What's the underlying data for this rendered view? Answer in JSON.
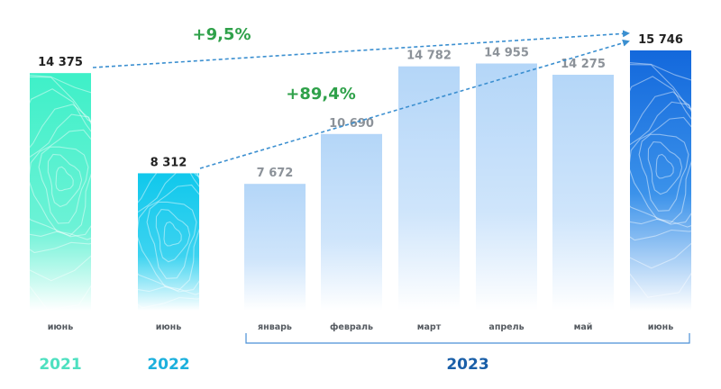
{
  "chart_data": {
    "type": "bar",
    "categories": [
      "июнь",
      "июнь",
      "январь",
      "февраль",
      "март",
      "апрель",
      "май",
      "июнь"
    ],
    "values": [
      14375,
      8312,
      7672,
      10690,
      14782,
      14955,
      14275,
      15746
    ],
    "value_labels": [
      "14 375",
      "8 312",
      "7 672",
      "10 690",
      "14 782",
      "14 955",
      "14 275",
      "15 746"
    ],
    "year_groups": [
      {
        "label": "2021",
        "from": 0,
        "to": 0,
        "color": "#4ee0c0"
      },
      {
        "label": "2022",
        "from": 1,
        "to": 1,
        "color": "#1cb0dd"
      },
      {
        "label": "2023",
        "from": 2,
        "to": 7,
        "color": "#1a5fa8"
      }
    ],
    "annotations": [
      {
        "text": "+9,5%",
        "from": 0,
        "to": 7
      },
      {
        "text": "+89,4%",
        "from": 1,
        "to": 7
      }
    ],
    "ylim": [
      0,
      17000
    ],
    "grid": false,
    "legend": "none",
    "colors": {
      "bar_2021": "#3ef0c8",
      "bar_2022": "#10c8ec",
      "bar_2023": "#b7d8f8",
      "bar_2023_current": "#1670de",
      "value_dark": "#222222",
      "value_light": "#8c9299",
      "annotation": "#2fa14a",
      "arrow": "#3b8fd0"
    }
  }
}
